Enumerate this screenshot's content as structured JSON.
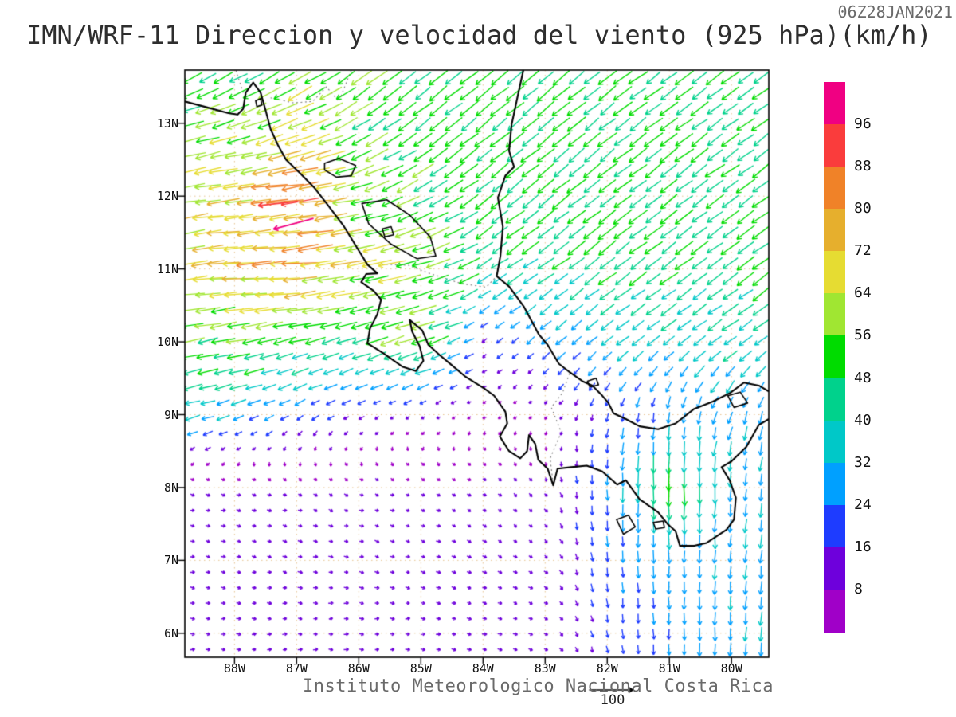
{
  "header": {
    "title": "IMN/WRF-11 Direccion y velocidad del viento (925 hPa)(km/h)",
    "timestamp": "06Z28JAN2021"
  },
  "footer": {
    "caption": "Instituto Meteorologico Nacional Costa Rica",
    "reference_value": "100"
  },
  "chart_data": {
    "type": "vector_field",
    "title": "IMN/WRF-11 Direccion y velocidad del viento (925 hPa)(km/h)",
    "timestamp": "06Z28JAN2021",
    "variable": "Direccion y velocidad del viento",
    "level": "925 hPa",
    "units": "km/h",
    "lon_range": [
      -88.8,
      -79.4
    ],
    "lat_range": [
      5.67,
      13.73
    ],
    "x_ticks": [
      "88W",
      "87W",
      "86W",
      "85W",
      "84W",
      "83W",
      "82W",
      "81W",
      "80W"
    ],
    "x_tick_lons": [
      -88,
      -87,
      -86,
      -85,
      -84,
      -83,
      -82,
      -81,
      -80
    ],
    "y_ticks": [
      "13N",
      "12N",
      "11N",
      "10N",
      "9N",
      "8N",
      "7N",
      "6N"
    ],
    "y_tick_lats": [
      13,
      12,
      11,
      10,
      9,
      8,
      7,
      6
    ],
    "colorbar": {
      "tick_values": [
        96,
        88,
        80,
        72,
        64,
        56,
        48,
        40,
        32,
        24,
        16,
        8
      ],
      "colors_top_to_bottom": [
        "#f00082",
        "#fa3c3c",
        "#f08228",
        "#e6af2d",
        "#e6dc32",
        "#a0e632",
        "#00dc00",
        "#00d28c",
        "#00c8c8",
        "#00a0ff",
        "#1e3cff",
        "#6e00dc",
        "#a000c8"
      ]
    },
    "reference_vector": {
      "label": "100",
      "speed": 100
    },
    "wind_grid": {
      "lats": [
        6,
        7,
        8,
        9,
        10,
        11,
        12,
        13,
        14
      ],
      "lons": [
        -89,
        -88,
        -87,
        -86,
        -85,
        -84,
        -83,
        -82,
        -81,
        -80,
        -79
      ],
      "u": [
        [
          10,
          10,
          10,
          10,
          10,
          10,
          9,
          3,
          0,
          -2,
          -3
        ],
        [
          10,
          10,
          10,
          10,
          10,
          9,
          8,
          2,
          0,
          -2,
          -3
        ],
        [
          10,
          10,
          9,
          9,
          8,
          8,
          5,
          0,
          0,
          -2,
          -3
        ],
        [
          -35,
          -28,
          -18,
          -12,
          -8,
          -5,
          -4,
          -5,
          -3,
          -10,
          -5
        ],
        [
          -50,
          -55,
          -48,
          -45,
          -58,
          -12,
          -20,
          -25,
          -30,
          -32,
          -30
        ],
        [
          -62,
          -72,
          -75,
          -65,
          -55,
          -40,
          -35,
          -38,
          -38,
          -38,
          -38
        ],
        [
          -60,
          -70,
          -82,
          -55,
          -45,
          -40,
          -38,
          -38,
          -38,
          -38,
          -38
        ],
        [
          -52,
          -58,
          -60,
          -45,
          -40,
          -38,
          -38,
          -38,
          -38,
          -38,
          -38
        ],
        [
          -30,
          -35,
          -40,
          -40,
          -40,
          -38,
          -38,
          -38,
          -38,
          -38,
          -38
        ]
      ],
      "v": [
        [
          0,
          0,
          0,
          0,
          0,
          -2,
          -3,
          -18,
          -26,
          -30,
          -32
        ],
        [
          -2,
          -2,
          -2,
          -2,
          -3,
          -4,
          -6,
          -22,
          -28,
          -30,
          -30
        ],
        [
          -3,
          -2,
          -3,
          -4,
          -3,
          -5,
          -8,
          -25,
          -52,
          -30,
          -30
        ],
        [
          -8,
          -10,
          -12,
          -8,
          -5,
          -3,
          -4,
          -18,
          -25,
          -28,
          -28
        ],
        [
          -12,
          -10,
          -12,
          -15,
          -20,
          -8,
          -18,
          -20,
          -22,
          -22,
          -20
        ],
        [
          -8,
          -6,
          -8,
          -10,
          -15,
          -25,
          -25,
          -28,
          -28,
          -28,
          -28
        ],
        [
          -10,
          -10,
          -8,
          -15,
          -25,
          -30,
          -30,
          -30,
          -30,
          -28,
          -28
        ],
        [
          -15,
          -18,
          -25,
          -28,
          -30,
          -30,
          -30,
          -30,
          -28,
          -28,
          -28
        ],
        [
          -25,
          -25,
          -28,
          -30,
          -30,
          -30,
          -30,
          -28,
          -28,
          -28,
          -28
        ]
      ]
    },
    "jet_maxima": [
      {
        "lon": -87.3,
        "lat": 11.9,
        "u": -90,
        "v": -10
      },
      {
        "lon": -87.05,
        "lat": 11.62,
        "u": -93,
        "v": -25
      }
    ],
    "map_outlines": {
      "coastlines": [
        [
          [
            -88.8,
            13.3
          ],
          [
            -88.45,
            13.22
          ],
          [
            -88.1,
            13.14
          ],
          [
            -87.95,
            13.12
          ],
          [
            -87.86,
            13.2
          ],
          [
            -87.82,
            13.42
          ],
          [
            -87.7,
            13.56
          ],
          [
            -87.58,
            13.42
          ],
          [
            -87.5,
            13.18
          ],
          [
            -87.42,
            12.92
          ],
          [
            -87.3,
            12.7
          ],
          [
            -87.17,
            12.5
          ],
          [
            -86.95,
            12.32
          ],
          [
            -86.72,
            12.12
          ],
          [
            -86.5,
            11.88
          ],
          [
            -86.25,
            11.6
          ],
          [
            -86.02,
            11.28
          ],
          [
            -85.86,
            11.06
          ],
          [
            -85.7,
            10.94
          ],
          [
            -85.88,
            10.93
          ],
          [
            -85.96,
            10.82
          ],
          [
            -85.76,
            10.7
          ],
          [
            -85.64,
            10.58
          ],
          [
            -85.7,
            10.38
          ],
          [
            -85.82,
            10.18
          ],
          [
            -85.86,
            9.98
          ],
          [
            -85.6,
            9.84
          ],
          [
            -85.3,
            9.66
          ],
          [
            -85.08,
            9.6
          ],
          [
            -84.96,
            9.74
          ],
          [
            -85.02,
            9.94
          ],
          [
            -85.14,
            10.14
          ],
          [
            -85.18,
            10.3
          ],
          [
            -84.98,
            10.16
          ],
          [
            -84.88,
            9.96
          ],
          [
            -84.7,
            9.82
          ],
          [
            -84.56,
            9.72
          ],
          [
            -84.28,
            9.52
          ],
          [
            -83.98,
            9.36
          ],
          [
            -83.82,
            9.26
          ],
          [
            -83.64,
            9.04
          ],
          [
            -83.61,
            8.88
          ],
          [
            -83.73,
            8.7
          ],
          [
            -83.58,
            8.5
          ],
          [
            -83.4,
            8.4
          ],
          [
            -83.29,
            8.5
          ],
          [
            -83.26,
            8.72
          ],
          [
            -83.16,
            8.6
          ],
          [
            -83.11,
            8.38
          ],
          [
            -82.96,
            8.26
          ],
          [
            -82.87,
            8.03
          ],
          [
            -82.8,
            8.26
          ],
          [
            -82.58,
            8.28
          ],
          [
            -82.33,
            8.3
          ],
          [
            -82.08,
            8.22
          ],
          [
            -81.84,
            8.04
          ],
          [
            -81.7,
            8.1
          ],
          [
            -81.48,
            7.84
          ],
          [
            -81.18,
            7.66
          ],
          [
            -81.03,
            7.5
          ],
          [
            -80.9,
            7.4
          ],
          [
            -80.83,
            7.2
          ],
          [
            -80.6,
            7.2
          ],
          [
            -80.4,
            7.24
          ],
          [
            -80.08,
            7.42
          ],
          [
            -79.96,
            7.56
          ],
          [
            -79.93,
            7.86
          ],
          [
            -80.03,
            8.1
          ],
          [
            -80.16,
            8.28
          ],
          [
            -80.0,
            8.36
          ],
          [
            -79.76,
            8.56
          ],
          [
            -79.56,
            8.86
          ],
          [
            -79.4,
            8.94
          ]
        ],
        [
          [
            -83.35,
            13.73
          ],
          [
            -83.44,
            13.38
          ],
          [
            -83.54,
            12.98
          ],
          [
            -83.58,
            12.62
          ],
          [
            -83.5,
            12.4
          ],
          [
            -83.64,
            12.28
          ],
          [
            -83.76,
            11.98
          ],
          [
            -83.68,
            11.58
          ],
          [
            -83.72,
            11.18
          ],
          [
            -83.78,
            10.9
          ],
          [
            -83.58,
            10.76
          ],
          [
            -83.34,
            10.48
          ],
          [
            -83.1,
            10.1
          ],
          [
            -82.96,
            9.96
          ],
          [
            -82.78,
            9.7
          ],
          [
            -82.6,
            9.58
          ],
          [
            -82.4,
            9.46
          ],
          [
            -82.24,
            9.4
          ],
          [
            -82.1,
            9.28
          ],
          [
            -81.98,
            9.16
          ],
          [
            -81.9,
            9.02
          ],
          [
            -81.7,
            8.94
          ],
          [
            -81.48,
            8.84
          ],
          [
            -81.18,
            8.8
          ],
          [
            -80.9,
            8.88
          ],
          [
            -80.6,
            9.08
          ],
          [
            -80.3,
            9.18
          ],
          [
            -80.02,
            9.3
          ],
          [
            -79.8,
            9.44
          ],
          [
            -79.56,
            9.4
          ],
          [
            -79.4,
            9.32
          ]
        ]
      ],
      "lakes": [
        [
          [
            -86.55,
            12.45
          ],
          [
            -86.32,
            12.52
          ],
          [
            -86.05,
            12.42
          ],
          [
            -86.12,
            12.28
          ],
          [
            -86.36,
            12.26
          ],
          [
            -86.55,
            12.36
          ]
        ],
        [
          [
            -85.95,
            11.9
          ],
          [
            -85.55,
            11.95
          ],
          [
            -85.18,
            11.74
          ],
          [
            -84.85,
            11.44
          ],
          [
            -84.76,
            11.18
          ],
          [
            -85.06,
            11.14
          ],
          [
            -85.48,
            11.34
          ],
          [
            -85.84,
            11.62
          ]
        ],
        [
          [
            -85.62,
            11.55
          ],
          [
            -85.48,
            11.58
          ],
          [
            -85.44,
            11.47
          ],
          [
            -85.58,
            11.44
          ]
        ]
      ],
      "islands": [
        [
          [
            -81.85,
            7.56
          ],
          [
            -81.66,
            7.62
          ],
          [
            -81.55,
            7.46
          ],
          [
            -81.74,
            7.36
          ]
        ],
        [
          [
            -81.26,
            7.52
          ],
          [
            -81.1,
            7.54
          ],
          [
            -81.08,
            7.45
          ],
          [
            -81.22,
            7.43
          ]
        ],
        [
          [
            -82.32,
            9.46
          ],
          [
            -82.18,
            9.5
          ],
          [
            -82.14,
            9.41
          ],
          [
            -82.28,
            9.38
          ]
        ],
        [
          [
            -87.66,
            13.31
          ],
          [
            -87.58,
            13.34
          ],
          [
            -87.56,
            13.25
          ],
          [
            -87.64,
            13.23
          ]
        ],
        [
          [
            -80.06,
            9.26
          ],
          [
            -79.86,
            9.31
          ],
          [
            -79.74,
            9.16
          ],
          [
            -79.96,
            9.1
          ]
        ]
      ],
      "borders": [
        [
          [
            -87.86,
            13.42
          ],
          [
            -87.98,
            13.73
          ]
        ],
        [
          [
            -87.42,
            13.35
          ],
          [
            -87.05,
            13.28
          ],
          [
            -86.74,
            13.3
          ],
          [
            -86.52,
            13.5
          ],
          [
            -86.32,
            13.3
          ],
          [
            -86.12,
            13.73
          ]
        ],
        [
          [
            -85.7,
            11.07
          ],
          [
            -85.2,
            11.05
          ],
          [
            -84.9,
            10.95
          ],
          [
            -84.35,
            10.8
          ],
          [
            -83.95,
            10.75
          ],
          [
            -83.78,
            10.9
          ]
        ],
        [
          [
            -82.87,
            8.05
          ],
          [
            -82.92,
            8.4
          ],
          [
            -82.74,
            8.76
          ],
          [
            -82.9,
            9.1
          ],
          [
            -82.72,
            9.3
          ],
          [
            -82.6,
            9.58
          ]
        ]
      ]
    }
  }
}
